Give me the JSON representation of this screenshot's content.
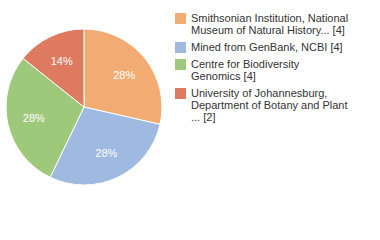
{
  "chart_data": {
    "type": "pie",
    "categories": [
      "Smithsonian Institution, National Museum of Natural History... [4]",
      "Mined from GenBank, NCBI [4]",
      "Centre for Biodiversity Genomics [4]",
      "University of Johannesburg, Department of Botany and Plant ... [2]"
    ],
    "values": [
      28,
      28,
      28,
      14
    ],
    "value_labels": [
      "28%",
      "28%",
      "28%",
      "14%"
    ],
    "colors": [
      "#f2ab73",
      "#9fb9e0",
      "#9ec97a",
      "#dd7a5f"
    ],
    "data_labels": true,
    "legend": "top-right"
  }
}
